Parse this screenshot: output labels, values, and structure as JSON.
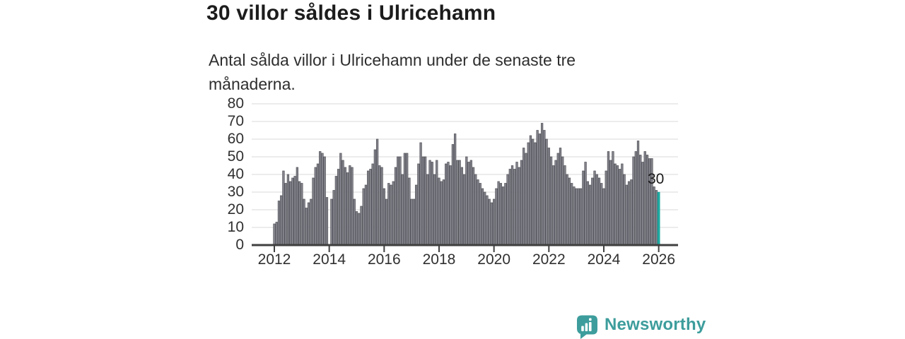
{
  "header": {
    "title": "30 villor såldes i Ulricehamn",
    "subtitle": "Antal sålda villor i Ulricehamn under de senaste tre månaderna."
  },
  "footer": {
    "brand_name": "Newsworthy",
    "brand_color": "#3d9d9c"
  },
  "chart_data": {
    "type": "bar",
    "title": "30 villor såldes i Ulricehamn",
    "xlabel": "",
    "ylabel": "",
    "start": "2012-01",
    "frequency": "monthly",
    "ylim": [
      0,
      80
    ],
    "grid": "horizontal",
    "y_ticks": [
      0,
      10,
      20,
      30,
      40,
      50,
      60,
      70,
      80
    ],
    "x_ticks": [
      {
        "label": "2012",
        "month": 0
      },
      {
        "label": "2014",
        "month": 24
      },
      {
        "label": "2016",
        "month": 48
      },
      {
        "label": "2018",
        "month": 72
      },
      {
        "label": "2020",
        "month": 96
      },
      {
        "label": "2022",
        "month": 120
      },
      {
        "label": "2024",
        "month": 144
      },
      {
        "label": "2026",
        "month": 168
      }
    ],
    "values": [
      12,
      13,
      25,
      28,
      42,
      35,
      40,
      36,
      38,
      39,
      44,
      36,
      35,
      26,
      21,
      24,
      26,
      38,
      44,
      46,
      53,
      52,
      50,
      27,
      null,
      26,
      31,
      39,
      43,
      52,
      48,
      44,
      41,
      45,
      44,
      26,
      19,
      18,
      22,
      32,
      34,
      42,
      43,
      46,
      54,
      60,
      45,
      44,
      32,
      26,
      35,
      34,
      36,
      44,
      50,
      50,
      40,
      52,
      52,
      38,
      26,
      26,
      34,
      46,
      58,
      50,
      50,
      40,
      48,
      47,
      40,
      48,
      38,
      36,
      37,
      46,
      47,
      45,
      57,
      63,
      48,
      48,
      44,
      40,
      50,
      47,
      48,
      44,
      40,
      37,
      35,
      32,
      30,
      28,
      26,
      24,
      26,
      32,
      36,
      35,
      33,
      35,
      40,
      43,
      45,
      43,
      47,
      44,
      48,
      55,
      52,
      58,
      62,
      60,
      58,
      65,
      63,
      69,
      65,
      60,
      55,
      50,
      45,
      48,
      52,
      55,
      50,
      45,
      40,
      38,
      35,
      33,
      32,
      32,
      32,
      42,
      47,
      36,
      34,
      38,
      42,
      40,
      38,
      35,
      32,
      42,
      53,
      48,
      53,
      46,
      45,
      43,
      46,
      40,
      34,
      36,
      37,
      50,
      53,
      59,
      51,
      47,
      53,
      51,
      49,
      49,
      33,
      31,
      30
    ],
    "bar_color": "#84848c",
    "bar_stroke": "#52525a",
    "highlight_color": "#1ca8a0",
    "highlight_index": 168,
    "annotation": {
      "label": "30",
      "index": 168,
      "value": 30
    },
    "gridline_color": "#e1e1e1",
    "axis_color": "#3f3f3f"
  }
}
